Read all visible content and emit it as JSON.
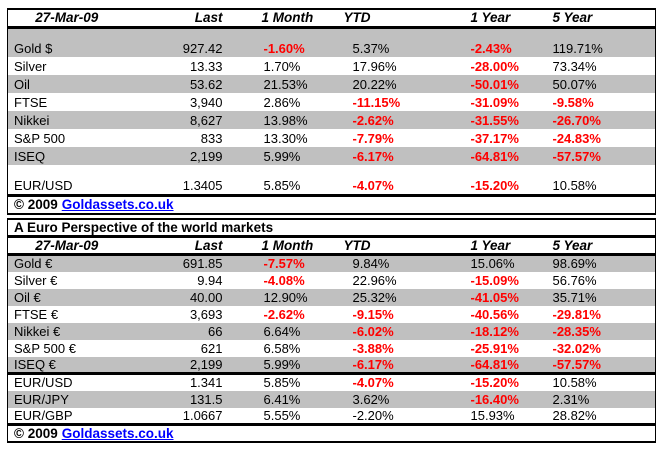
{
  "copyright": {
    "prefix": "© 2009",
    "link_label": "Goldassets.co.uk"
  },
  "colors": {
    "stripe": "#c0c0c0",
    "negative": "#ff0000",
    "link_blue": "#0000ff",
    "border": "#000000",
    "text": "#000000"
  },
  "tables": [
    {
      "name": "dollar-markets",
      "title": null,
      "columns": [
        "27-Mar-09",
        "Last",
        "1 Month",
        "YTD",
        "1 Year",
        "5 Year"
      ],
      "rows": [
        {
          "type": "spacer",
          "shade": "gray"
        },
        {
          "label": "Gold $",
          "shade": "gray",
          "cells": [
            {
              "t": "927.42"
            },
            {
              "t": "-1.60%",
              "r": true
            },
            {
              "t": "5.37%"
            },
            {
              "t": "-2.43%",
              "r": true
            },
            {
              "t": "119.71%"
            }
          ]
        },
        {
          "label": "Silver",
          "shade": "white",
          "cells": [
            {
              "t": "13.33"
            },
            {
              "t": "1.70%"
            },
            {
              "t": "17.96%"
            },
            {
              "t": "-28.00%",
              "r": true
            },
            {
              "t": "73.34%"
            }
          ]
        },
        {
          "label": "Oil",
          "shade": "gray",
          "cells": [
            {
              "t": "53.62"
            },
            {
              "t": "21.53%"
            },
            {
              "t": "20.22%"
            },
            {
              "t": "-50.01%",
              "r": true
            },
            {
              "t": "50.07%"
            }
          ]
        },
        {
          "label": "FTSE",
          "shade": "white",
          "cells": [
            {
              "t": "3,940"
            },
            {
              "t": "2.86%"
            },
            {
              "t": "-11.15%",
              "r": true
            },
            {
              "t": "-31.09%",
              "r": true
            },
            {
              "t": "-9.58%",
              "r": true
            }
          ]
        },
        {
          "label": "Nikkei",
          "shade": "gray",
          "cells": [
            {
              "t": "8,627"
            },
            {
              "t": "13.98%"
            },
            {
              "t": "-2.62%",
              "r": true
            },
            {
              "t": "-31.55%",
              "r": true
            },
            {
              "t": "-26.70%",
              "r": true
            }
          ]
        },
        {
          "label": "S&P 500",
          "shade": "white",
          "cells": [
            {
              "t": "833"
            },
            {
              "t": "13.30%"
            },
            {
              "t": "-7.79%",
              "r": true
            },
            {
              "t": "-37.17%",
              "r": true
            },
            {
              "t": "-24.83%",
              "r": true
            }
          ]
        },
        {
          "label": "ISEQ",
          "shade": "gray",
          "cells": [
            {
              "t": "2,199"
            },
            {
              "t": "5.99%"
            },
            {
              "t": "-6.17%",
              "r": true
            },
            {
              "t": "-64.81%",
              "r": true
            },
            {
              "t": "-57.57%",
              "r": true
            }
          ]
        },
        {
          "type": "spacer",
          "shade": "white"
        },
        {
          "label": "EUR/USD",
          "shade": "white",
          "cells": [
            {
              "t": "1.3405"
            },
            {
              "t": "5.85%"
            },
            {
              "t": "-4.07%",
              "r": true
            },
            {
              "t": "-15.20%",
              "r": true
            },
            {
              "t": "10.58%"
            }
          ]
        }
      ]
    },
    {
      "name": "euro-markets",
      "title": "A Euro Perspective of the world markets",
      "columns": [
        "27-Mar-09",
        "Last",
        "1 Month",
        "YTD",
        "1 Year",
        "5 Year"
      ],
      "rows": [
        {
          "label": "Gold €",
          "shade": "gray",
          "cells": [
            {
              "t": "691.85"
            },
            {
              "t": "-7.57%",
              "r": true
            },
            {
              "t": "9.84%"
            },
            {
              "t": "15.06%"
            },
            {
              "t": "98.69%"
            }
          ]
        },
        {
          "label": "Silver €",
          "shade": "white",
          "cells": [
            {
              "t": "9.94"
            },
            {
              "t": "-4.08%",
              "r": true
            },
            {
              "t": "22.96%"
            },
            {
              "t": "-15.09%",
              "r": true
            },
            {
              "t": "56.76%"
            }
          ]
        },
        {
          "label": "Oil €",
          "shade": "gray",
          "cells": [
            {
              "t": "40.00"
            },
            {
              "t": "12.90%"
            },
            {
              "t": "25.32%"
            },
            {
              "t": "-41.05%",
              "r": true
            },
            {
              "t": "35.71%"
            }
          ]
        },
        {
          "label": "FTSE €",
          "shade": "white",
          "cells": [
            {
              "t": "3,693"
            },
            {
              "t": "-2.62%",
              "r": true
            },
            {
              "t": "-9.15%",
              "r": true
            },
            {
              "t": "-40.56%",
              "r": true
            },
            {
              "t": "-29.81%",
              "r": true
            }
          ]
        },
        {
          "label": "Nikkei €",
          "shade": "gray",
          "cells": [
            {
              "t": "66"
            },
            {
              "t": "6.64%"
            },
            {
              "t": "-6.02%",
              "r": true
            },
            {
              "t": "-18.12%",
              "r": true
            },
            {
              "t": "-28.35%",
              "r": true
            }
          ]
        },
        {
          "label": "S&P 500 €",
          "shade": "white",
          "cells": [
            {
              "t": "621"
            },
            {
              "t": "6.58%"
            },
            {
              "t": "-3.88%",
              "r": true
            },
            {
              "t": "-25.91%",
              "r": true
            },
            {
              "t": "-32.02%",
              "r": true
            }
          ]
        },
        {
          "label": "ISEQ €",
          "shade": "gray",
          "cells": [
            {
              "t": "2,199"
            },
            {
              "t": "5.99%"
            },
            {
              "t": "-6.17%",
              "r": true
            },
            {
              "t": "-64.81%",
              "r": true
            },
            {
              "t": "-57.57%",
              "r": true
            }
          ]
        },
        {
          "label": "EUR/USD",
          "shade": "white",
          "sep": true,
          "cells": [
            {
              "t": "1.341"
            },
            {
              "t": "5.85%"
            },
            {
              "t": "-4.07%",
              "r": true
            },
            {
              "t": "-15.20%",
              "r": true
            },
            {
              "t": "10.58%"
            }
          ]
        },
        {
          "label": "EUR/JPY",
          "shade": "gray",
          "cells": [
            {
              "t": "131.5"
            },
            {
              "t": "6.41%"
            },
            {
              "t": "3.62%"
            },
            {
              "t": "-16.40%",
              "r": true
            },
            {
              "t": "2.31%"
            }
          ]
        },
        {
          "label": "EUR/GBP",
          "shade": "white",
          "cells": [
            {
              "t": "1.0667"
            },
            {
              "t": "5.55%"
            },
            {
              "t": "-2.20%"
            },
            {
              "t": "15.93%"
            },
            {
              "t": "28.82%"
            }
          ]
        }
      ]
    }
  ]
}
